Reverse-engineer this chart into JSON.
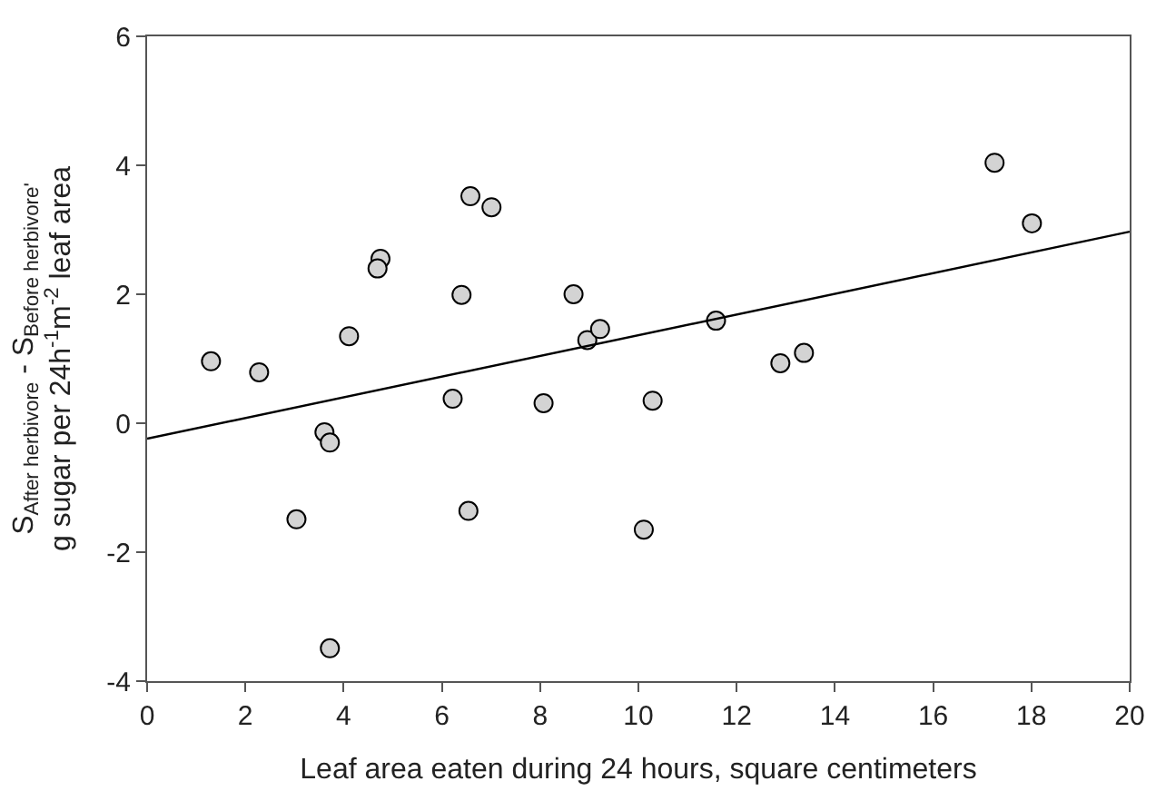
{
  "chart_data": {
    "type": "scatter",
    "xlabel": "Leaf area eaten during 24 hours, square centimeters",
    "ylabel": "S$_{After herbivore}$ - S$_{Before herbivore'}$\ng sugar per 24h$^{-1}$m$^{-2}$ leaf area",
    "xlim": [
      0,
      20
    ],
    "ylim": [
      -4,
      6
    ],
    "xticks": [
      0,
      2,
      4,
      6,
      8,
      10,
      12,
      14,
      16,
      18,
      20
    ],
    "yticks": [
      -4,
      -2,
      0,
      2,
      4,
      6
    ],
    "series": [
      {
        "marker": "circle",
        "color": "#d3d3d3",
        "x": [
          1.3,
          2.28,
          3.04,
          3.61,
          3.72,
          3.72,
          4.11,
          4.75,
          4.69,
          6.22,
          6.4,
          6.58,
          6.54,
          7.01,
          8.07,
          8.68,
          8.96,
          9.22,
          10.11,
          10.29,
          11.58,
          12.89,
          13.37,
          17.25,
          18.01
        ],
        "values": [
          0.96,
          0.79,
          -1.49,
          -0.14,
          -0.3,
          -3.49,
          1.35,
          2.55,
          2.4,
          0.38,
          1.99,
          3.52,
          -1.36,
          3.35,
          0.31,
          2.0,
          1.29,
          1.46,
          -1.65,
          0.35,
          1.59,
          0.93,
          1.09,
          4.04,
          3.1
        ]
      },
      {
        "type": "line",
        "color": "#000000",
        "line_style": "solid",
        "x": [
          0,
          20
        ],
        "values": [
          -0.24,
          2.97
        ]
      }
    ]
  }
}
